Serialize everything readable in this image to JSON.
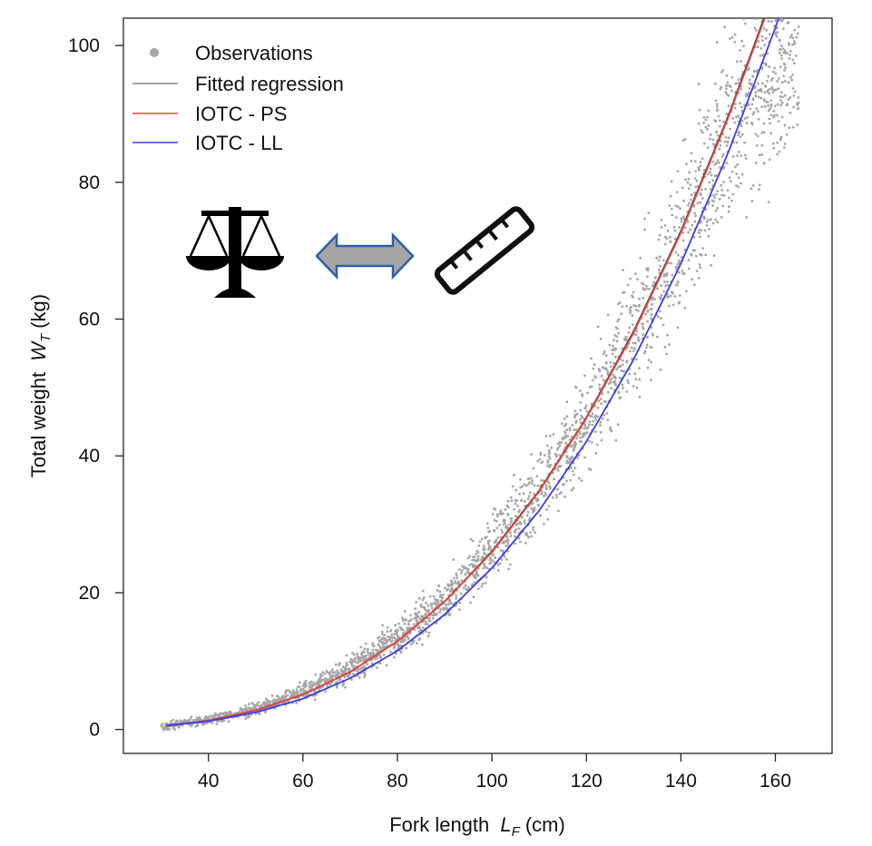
{
  "chart_data": {
    "type": "scatter",
    "title": "",
    "xlabel": "Fork length",
    "xlabel_symbol": "L",
    "xlabel_subscript": "F",
    "xlabel_unit": "(cm)",
    "ylabel": "Total weight",
    "ylabel_symbol": "W",
    "ylabel_subscript": "T",
    "ylabel_unit": "(kg)",
    "xlim": [
      22,
      172
    ],
    "ylim": [
      -3.5,
      104
    ],
    "xticks": [
      40,
      60,
      80,
      100,
      120,
      140,
      160
    ],
    "yticks": [
      0,
      20,
      40,
      60,
      80,
      100
    ],
    "grid": false,
    "legend_position": "top-left",
    "legend": [
      {
        "label": "Observations",
        "symbol": "point",
        "color": "#a6a6a6"
      },
      {
        "label": "Fitted regression",
        "symbol": "line",
        "color": "#888888"
      },
      {
        "label": "IOTC - PS",
        "symbol": "line",
        "color": "#e8463a"
      },
      {
        "label": "IOTC - LL",
        "symbol": "line",
        "color": "#3b3bf0"
      }
    ],
    "series": [
      {
        "kind": "points",
        "color": "#a6a6a6",
        "x": [
          30,
          35,
          40,
          45,
          50,
          55,
          60,
          65,
          70,
          75,
          80,
          85,
          90,
          95,
          100,
          105,
          110,
          115,
          120,
          125,
          130,
          135,
          140,
          145,
          150,
          155,
          160,
          165
        ],
        "y": [
          0.5,
          0.9,
          1.4,
          2.1,
          3.0,
          4.1,
          5.4,
          7.0,
          8.9,
          11.0,
          13.4,
          16.1,
          19.1,
          22.5,
          26.3,
          30.4,
          35.0,
          40.0,
          45.4,
          51.3,
          57.7,
          64.5,
          71.9,
          79.8,
          88.2,
          94.0,
          97.0,
          99.0
        ]
      },
      {
        "kind": "line",
        "color": "#2a2a2a",
        "x": [
          31,
          40,
          50,
          60,
          70,
          80,
          90,
          100,
          110,
          120,
          130,
          140,
          150,
          160,
          172
        ],
        "y": [
          0.5,
          1.3,
          2.8,
          5.1,
          8.4,
          12.9,
          18.7,
          26.0,
          34.9,
          45.6,
          58.2,
          72.8,
          89.6,
          108.5,
          134.0
        ]
      },
      {
        "kind": "line",
        "color": "#e8463a",
        "x": [
          31,
          40,
          50,
          60,
          70,
          80,
          90,
          100,
          110,
          120,
          130,
          140,
          150,
          160,
          172
        ],
        "y": [
          0.5,
          1.3,
          2.8,
          5.1,
          8.4,
          12.9,
          18.7,
          25.9,
          34.8,
          45.5,
          58.0,
          72.6,
          89.4,
          108.2,
          133.7
        ]
      },
      {
        "kind": "line",
        "color": "#3b3bf0",
        "x": [
          31,
          40,
          50,
          60,
          70,
          80,
          90,
          100,
          110,
          120,
          130,
          140,
          150,
          160,
          172
        ],
        "y": [
          0.6,
          1.2,
          2.5,
          4.5,
          7.5,
          11.5,
          16.8,
          23.6,
          32.0,
          42.1,
          54.1,
          68.1,
          84.3,
          102.6,
          127.5
        ]
      }
    ],
    "icons": [
      "balance-scale-icon",
      "double-arrow-icon",
      "ruler-icon"
    ]
  }
}
